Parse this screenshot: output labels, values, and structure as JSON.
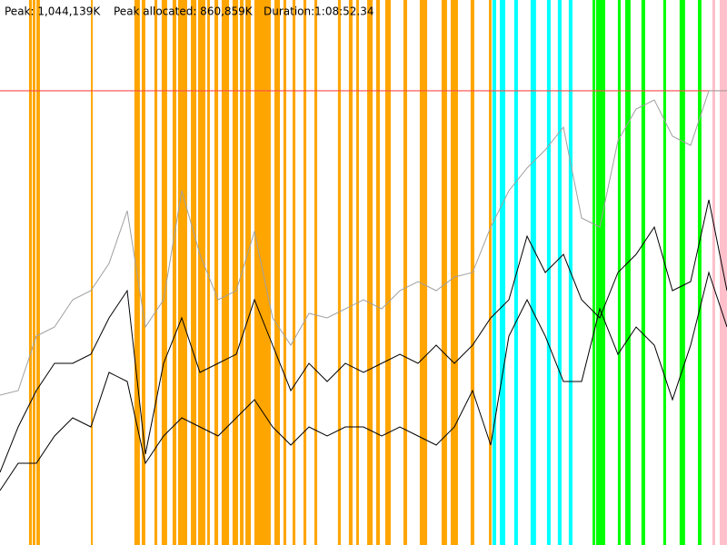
{
  "header": {
    "peak": "Peak: 1,044,139K",
    "peak_allocated": "Peak allocated: 860,859K",
    "duration": "Duration:1:08:52.34"
  },
  "chart_data": {
    "type": "line",
    "xlim": [
      0,
      4132.34
    ],
    "ylim": [
      0,
      1252800
    ],
    "reference_line": {
      "value": 1044139,
      "color": "#ff4a4a"
    },
    "events": [
      {
        "start": 165,
        "end": 181,
        "color": "#ffa500"
      },
      {
        "start": 186,
        "end": 201,
        "color": "#ffa500"
      },
      {
        "start": 207,
        "end": 227,
        "color": "#ffa500"
      },
      {
        "start": 517,
        "end": 527,
        "color": "#ffa500"
      },
      {
        "start": 764,
        "end": 795,
        "color": "#ffa500"
      },
      {
        "start": 806,
        "end": 826,
        "color": "#ffa500"
      },
      {
        "start": 878,
        "end": 894,
        "color": "#ffa500"
      },
      {
        "start": 919,
        "end": 950,
        "color": "#ffa500"
      },
      {
        "start": 981,
        "end": 1002,
        "color": "#ffa500"
      },
      {
        "start": 1012,
        "end": 1064,
        "color": "#ffa500"
      },
      {
        "start": 1085,
        "end": 1116,
        "color": "#ffa500"
      },
      {
        "start": 1126,
        "end": 1167,
        "color": "#ffa500"
      },
      {
        "start": 1178,
        "end": 1193,
        "color": "#ffa500"
      },
      {
        "start": 1219,
        "end": 1240,
        "color": "#ffa500"
      },
      {
        "start": 1260,
        "end": 1302,
        "color": "#ffa500"
      },
      {
        "start": 1322,
        "end": 1353,
        "color": "#ffa500"
      },
      {
        "start": 1364,
        "end": 1384,
        "color": "#ffa500"
      },
      {
        "start": 1395,
        "end": 1426,
        "color": "#ffa500"
      },
      {
        "start": 1446,
        "end": 1539,
        "color": "#ffa500"
      },
      {
        "start": 1560,
        "end": 1591,
        "color": "#ffa500"
      },
      {
        "start": 1611,
        "end": 1627,
        "color": "#ffa500"
      },
      {
        "start": 1663,
        "end": 1679,
        "color": "#ffa500"
      },
      {
        "start": 1725,
        "end": 1741,
        "color": "#ffa500"
      },
      {
        "start": 1787,
        "end": 1803,
        "color": "#ffa500"
      },
      {
        "start": 1921,
        "end": 1937,
        "color": "#ffa500"
      },
      {
        "start": 1983,
        "end": 2004,
        "color": "#ffa500"
      },
      {
        "start": 2025,
        "end": 2040,
        "color": "#ffa500"
      },
      {
        "start": 2087,
        "end": 2118,
        "color": "#ffa500"
      },
      {
        "start": 2138,
        "end": 2159,
        "color": "#ffa500"
      },
      {
        "start": 2190,
        "end": 2221,
        "color": "#ffa500"
      },
      {
        "start": 2293,
        "end": 2314,
        "color": "#ffa500"
      },
      {
        "start": 2386,
        "end": 2428,
        "color": "#ffa500"
      },
      {
        "start": 2510,
        "end": 2541,
        "color": "#ffa500"
      },
      {
        "start": 2562,
        "end": 2603,
        "color": "#ffa500"
      },
      {
        "start": 2675,
        "end": 2696,
        "color": "#ffa500"
      },
      {
        "start": 2779,
        "end": 2794,
        "color": "#ffa500"
      },
      {
        "start": 2799,
        "end": 2820,
        "color": "#00ffff"
      },
      {
        "start": 2841,
        "end": 2872,
        "color": "#00ffff"
      },
      {
        "start": 2923,
        "end": 2944,
        "color": "#00ffff"
      },
      {
        "start": 3016,
        "end": 3047,
        "color": "#00ffff"
      },
      {
        "start": 3109,
        "end": 3130,
        "color": "#00ffff"
      },
      {
        "start": 3171,
        "end": 3192,
        "color": "#00ffff"
      },
      {
        "start": 3233,
        "end": 3254,
        "color": "#00ffff"
      },
      {
        "start": 3368,
        "end": 3383,
        "color": "#00ff00"
      },
      {
        "start": 3388,
        "end": 3440,
        "color": "#00ff00"
      },
      {
        "start": 3512,
        "end": 3528,
        "color": "#00ff00"
      },
      {
        "start": 3554,
        "end": 3584,
        "color": "#00ff00"
      },
      {
        "start": 3646,
        "end": 3667,
        "color": "#00ff00"
      },
      {
        "start": 3770,
        "end": 3786,
        "color": "#00ff00"
      },
      {
        "start": 3863,
        "end": 3894,
        "color": "#00ff00"
      },
      {
        "start": 3967,
        "end": 3987,
        "color": "#00ff00"
      },
      {
        "start": 4049,
        "end": 4065,
        "color": "#ffc0cb"
      },
      {
        "start": 4091,
        "end": 4132,
        "color": "#ffc0cb"
      }
    ],
    "series": [
      {
        "color": "#a0a0a0",
        "values": [
          344520,
          354960,
          480240,
          501120,
          563760,
          584640,
          647280,
          768384,
          501120,
          563760,
          814320,
          668160,
          563760,
          584640,
          720360,
          522000,
          459360,
          532440,
          522000,
          542880,
          563760,
          542880,
          584640,
          605520,
          584640,
          615960,
          626400,
          730800,
          814320,
          866520,
          908280,
          960480,
          751680,
          730800,
          929160,
          1002240,
          1023120,
          939600,
          918720,
          1044000,
          1044000
        ]
      },
      {
        "color": "#000000",
        "values": [
          167040,
          271440,
          354960,
          417600,
          417600,
          438480,
          522000,
          584640,
          208800,
          417600,
          522000,
          396720,
          417600,
          438480,
          563760,
          459360,
          354960,
          417600,
          375840,
          417600,
          396720,
          417600,
          438480,
          417600,
          459360,
          417600,
          459360,
          522000,
          563760,
          709920,
          626400,
          668160,
          563760,
          522000,
          626400,
          668160,
          730800,
          584640,
          605520,
          793440,
          584640
        ]
      },
      {
        "color": "#000000",
        "values": [
          125280,
          187920,
          187920,
          250560,
          292320,
          271440,
          396720,
          375840,
          187920,
          250560,
          292320,
          271440,
          250560,
          292320,
          334080,
          271440,
          229680,
          271440,
          250560,
          271440,
          271440,
          250560,
          271440,
          250560,
          229680,
          271440,
          354960,
          229680,
          480240,
          563760,
          480240,
          375840,
          375840,
          542880,
          438480,
          501120,
          459360,
          334080,
          459360,
          626400,
          501120
        ]
      }
    ]
  }
}
